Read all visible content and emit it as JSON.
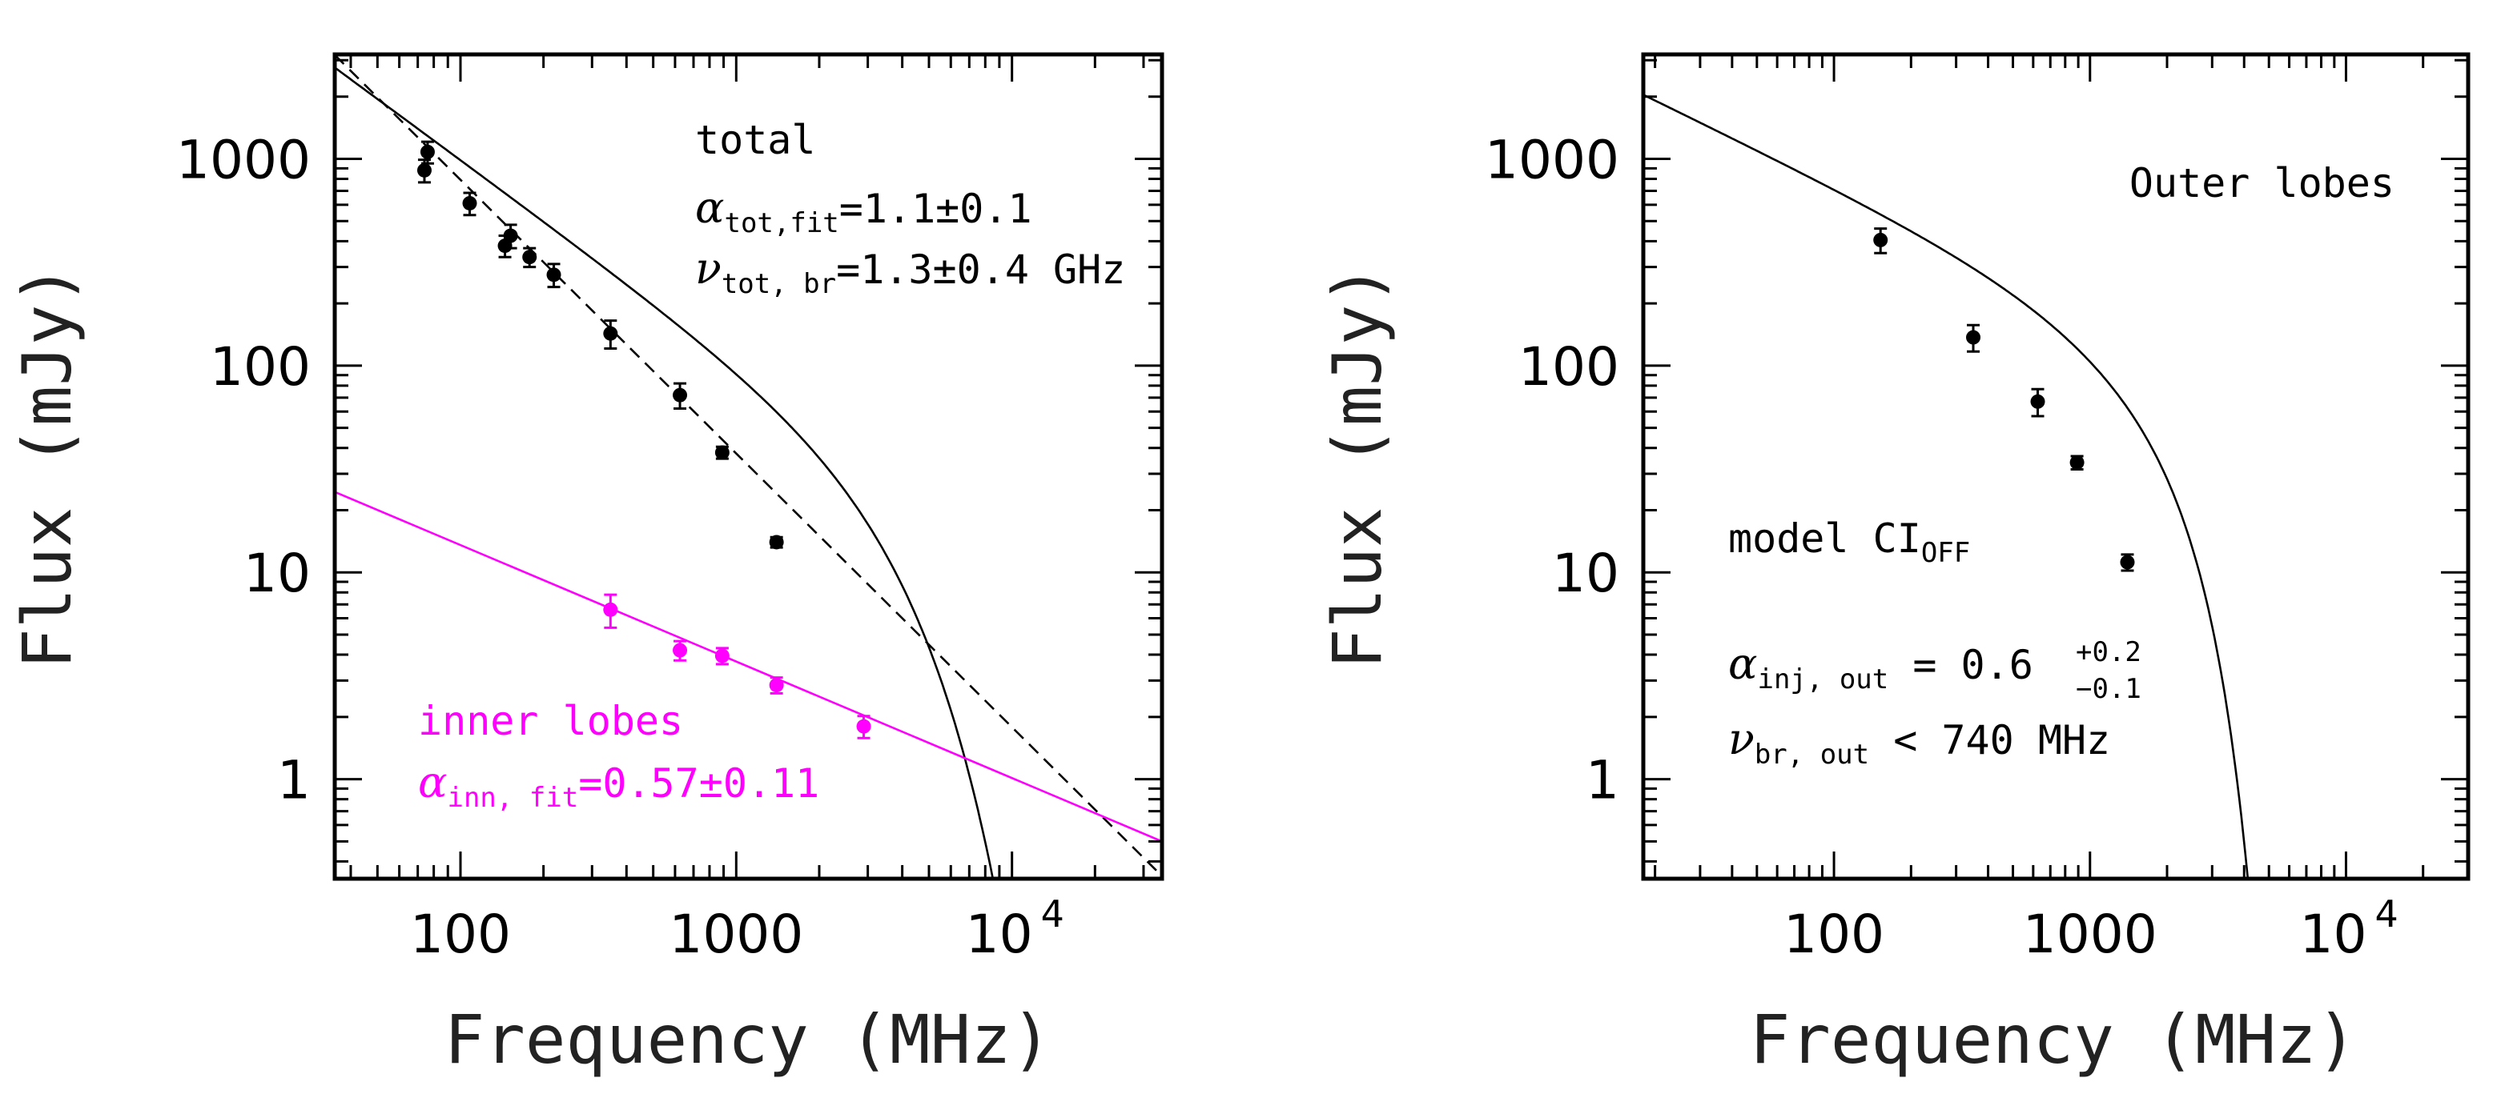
{
  "chart_data": [
    {
      "type": "scatter",
      "panel": "left",
      "xscale": "log",
      "yscale": "log",
      "xlim": [
        35,
        35000
      ],
      "ylim": [
        0.33,
        3200
      ],
      "xlabel": "Frequency (MHz)",
      "ylabel": "Flux (mJy)",
      "x_ticks": [
        {
          "value": 100,
          "label": "100"
        },
        {
          "value": 1000,
          "label": "1000"
        },
        {
          "value": 10000,
          "label": "10",
          "exp": "4"
        }
      ],
      "y_ticks": [
        {
          "value": 1,
          "label": "1"
        },
        {
          "value": 10,
          "label": "10"
        },
        {
          "value": 100,
          "label": "100"
        },
        {
          "value": 1000,
          "label": "1000"
        }
      ],
      "annotations": {
        "total": "total",
        "alpha_tot_symbol": "α",
        "alpha_tot_sub": "tot,fit",
        "alpha_tot_value": "=1.1±0.1",
        "nu_tot_symbol": "ν",
        "nu_tot_sub": "tot, br",
        "nu_tot_value": "=1.3±0.4 GHz",
        "inner_label": "inner lobes",
        "alpha_inn_symbol": "α",
        "alpha_inn_sub": "inn, fit",
        "alpha_inn_value": "=0.57±0.11"
      },
      "series": [
        {
          "name": "total",
          "color": "#000000",
          "points": [
            {
              "x": 74,
              "y": 880,
              "err": 110
            },
            {
              "x": 76,
              "y": 1080,
              "err": 130
            },
            {
              "x": 108,
              "y": 610,
              "err": 75
            },
            {
              "x": 145,
              "y": 380,
              "err": 45
            },
            {
              "x": 152,
              "y": 425,
              "err": 55
            },
            {
              "x": 178,
              "y": 335,
              "err": 35
            },
            {
              "x": 218,
              "y": 275,
              "err": 35
            },
            {
              "x": 350,
              "y": 143,
              "err": 22
            },
            {
              "x": 625,
              "y": 72,
              "err": 10
            },
            {
              "x": 890,
              "y": 38,
              "err": 2.5
            },
            {
              "x": 1400,
              "y": 14,
              "err": 0.8
            }
          ]
        },
        {
          "name": "inner lobes",
          "color": "#ff00ff",
          "points": [
            {
              "x": 350,
              "y": 6.6,
              "err": 1.2
            },
            {
              "x": 625,
              "y": 4.2,
              "err": 0.45
            },
            {
              "x": 890,
              "y": 3.95,
              "err": 0.35
            },
            {
              "x": 1400,
              "y": 2.85,
              "err": 0.25
            },
            {
              "x": 2900,
              "y": 1.8,
              "err": 0.22
            }
          ]
        }
      ],
      "lines": [
        {
          "name": "total fit (aged)",
          "style": "solid",
          "color": "#000000",
          "curve": "total"
        },
        {
          "name": "power law",
          "style": "dashed",
          "color": "#000000",
          "x": [
            35,
            35000
          ],
          "y": [
            3180,
            0.34
          ]
        },
        {
          "name": "inner lobes fit",
          "style": "solid",
          "color": "#ff00ff",
          "x": [
            35,
            35000
          ],
          "y": [
            24.5,
            0.5
          ]
        }
      ]
    },
    {
      "type": "scatter",
      "panel": "right",
      "xscale": "log",
      "yscale": "log",
      "xlim": [
        18,
        30000
      ],
      "ylim": [
        0.33,
        3200
      ],
      "xlabel": "Frequency (MHz)",
      "ylabel": "Flux (mJy)",
      "x_ticks": [
        {
          "value": 100,
          "label": "100"
        },
        {
          "value": 1000,
          "label": "1000"
        },
        {
          "value": 10000,
          "label": "10",
          "exp": "4"
        }
      ],
      "y_ticks": [
        {
          "value": 1,
          "label": "1"
        },
        {
          "value": 10,
          "label": "10"
        },
        {
          "value": 100,
          "label": "100"
        },
        {
          "value": 1000,
          "label": "1000"
        }
      ],
      "annotations": {
        "outer_label": "Outer lobes",
        "model_prefix": "model CI",
        "model_sub": "OFF",
        "alpha_inj_symbol": "α",
        "alpha_inj_sub": "inj, out",
        "alpha_inj_value": " = 0.6",
        "alpha_inj_sup": "+0.2",
        "alpha_inj_lower": "−0.1",
        "nu_br_symbol": "ν",
        "nu_br_sub": "br, out",
        "nu_br_value": " < 740 MHz"
      },
      "series": [
        {
          "name": "outer lobes",
          "color": "#000000",
          "points": [
            {
              "x": 152,
              "y": 405,
              "err": 55
            },
            {
              "x": 350,
              "y": 137,
              "err": 20
            },
            {
              "x": 625,
              "y": 67,
              "err": 10
            },
            {
              "x": 890,
              "y": 34,
              "err": 2.5
            },
            {
              "x": 1400,
              "y": 11.2,
              "err": 1.0
            }
          ]
        }
      ],
      "lines": [
        {
          "name": "CI_OFF model",
          "style": "solid",
          "color": "#000000",
          "curve": "outer"
        }
      ]
    }
  ]
}
